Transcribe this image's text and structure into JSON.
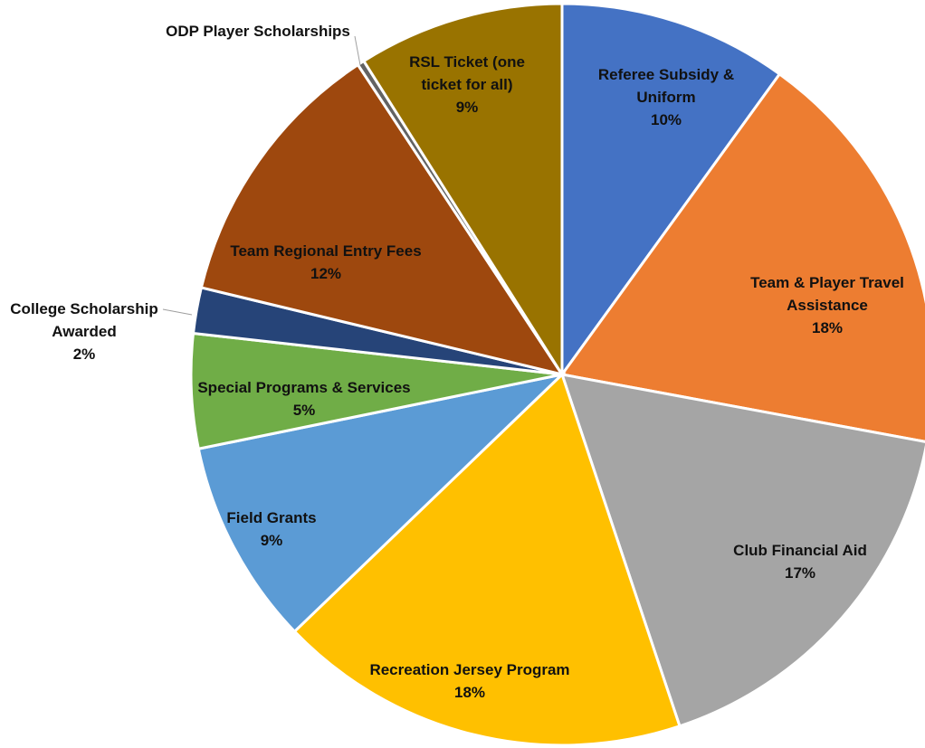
{
  "chart_data": {
    "type": "pie",
    "title": "",
    "slices": [
      {
        "label": "Referee Subsidy & Uniform",
        "value": 10,
        "value_label": "10%",
        "color": "#4472C4"
      },
      {
        "label": "Team & Player Travel Assistance",
        "value": 18,
        "value_label": "18%",
        "color": "#ED7D31"
      },
      {
        "label": "Club Financial Aid",
        "value": 17,
        "value_label": "17%",
        "color": "#A5A5A5"
      },
      {
        "label": "Recreation Jersey Program",
        "value": 18,
        "value_label": "18%",
        "color": "#FFC000"
      },
      {
        "label": "Field Grants",
        "value": 9,
        "value_label": "9%",
        "color": "#5B9BD5"
      },
      {
        "label": "Special Programs & Services",
        "value": 5,
        "value_label": "5%",
        "color": "#70AD47"
      },
      {
        "label": "College Scholarship Awarded",
        "value": 2,
        "value_label": "2%",
        "color": "#264478"
      },
      {
        "label": "Team Regional Entry Fees",
        "value": 12,
        "value_label": "12%",
        "color": "#9E480E"
      },
      {
        "label": "ODP Player Scholarships",
        "value": 0.3,
        "value_label": "",
        "color": "#636363"
      },
      {
        "label": "RSL Ticket (one ticket for all)",
        "value": 9,
        "value_label": "9%",
        "color": "#997300"
      }
    ],
    "start": "12 o'clock",
    "direction": "clockwise",
    "legend": "none"
  }
}
